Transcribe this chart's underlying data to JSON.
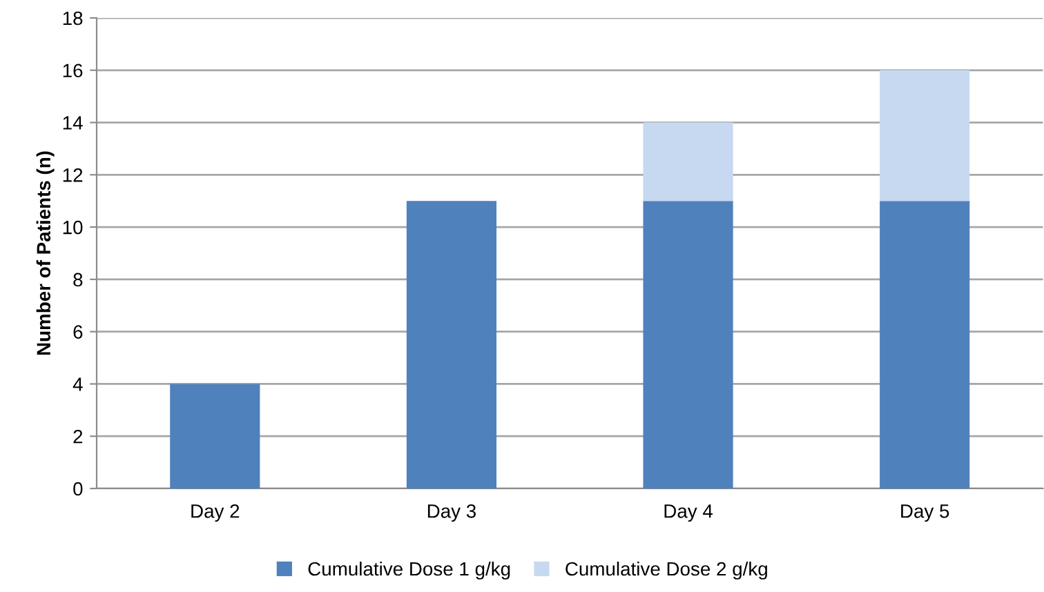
{
  "chart_data": {
    "type": "bar",
    "stacked": true,
    "ylabel": "Number of Patients (n)",
    "categories": [
      "Day 2",
      "Day 3",
      "Day 4",
      "Day 5"
    ],
    "series": [
      {
        "name": "Cumulative Dose 1 g/kg",
        "color": "#4f81bd",
        "values": [
          4,
          11,
          11,
          11
        ]
      },
      {
        "name": "Cumulative Dose 2 g/kg",
        "color": "#c6d9f1",
        "values": [
          null,
          null,
          3,
          5
        ]
      }
    ],
    "ylim": [
      0,
      18
    ],
    "yticks": [
      0,
      2,
      4,
      6,
      8,
      10,
      12,
      14,
      16,
      18
    ],
    "grid": "y",
    "legend": "bottom"
  }
}
